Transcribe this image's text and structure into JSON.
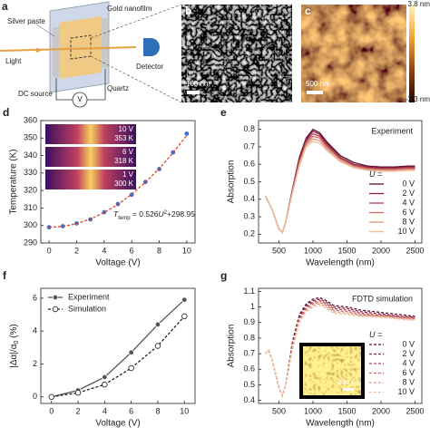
{
  "panels": {
    "a": {
      "label": "a",
      "texts": [
        "Silver paste",
        "Gold nanofilm",
        "Light",
        "Detector",
        "DC source",
        "Quartz",
        "V"
      ]
    },
    "b": {
      "label": "b",
      "scale": "100 nm"
    },
    "c": {
      "label": "c",
      "scale": "500 nm",
      "colorbar_max": "3.8 nm",
      "colorbar_min": "-3.3 nm"
    },
    "d": {
      "label": "d"
    },
    "e": {
      "label": "e"
    },
    "f": {
      "label": "f"
    },
    "g": {
      "label": "g"
    }
  },
  "chart_data": [
    {
      "type": "scatter",
      "xlabel": "Voltage (V)",
      "ylabel": "Temperature (K)",
      "x": [
        0,
        1,
        2,
        3,
        4,
        5,
        6,
        7,
        8,
        9,
        10
      ],
      "series": [
        {
          "color": "#3f6fc4",
          "marker": "filled",
          "line": "none",
          "values": [
            299,
            299.6,
            301.2,
            303.5,
            307.6,
            312.3,
            317.6,
            324.9,
            332.3,
            341.8,
            352.5
          ]
        },
        {
          "color": "#e0402a",
          "marker": "none",
          "line": "dashed",
          "values": [
            298.95,
            299.48,
            301.05,
            303.68,
            307.37,
            312.1,
            317.89,
            324.72,
            332.61,
            341.56,
            351.55
          ]
        }
      ],
      "xlim": [
        -0.6,
        10.6
      ],
      "xticks": [
        0,
        2,
        4,
        6,
        8,
        10
      ],
      "ylim": [
        290,
        360
      ],
      "yticks": [
        290,
        300,
        310,
        320,
        330,
        340,
        350,
        360
      ],
      "annotation_parts": [
        "T",
        "temp",
        " = 0.526",
        "U",
        "2",
        "+298.95"
      ],
      "insets": [
        {
          "voltage": "10 V",
          "temperature": "353 K"
        },
        {
          "voltage": "6 V",
          "temperature": "318 K"
        },
        {
          "voltage": "1 V",
          "temperature": "300 K"
        }
      ]
    },
    {
      "type": "line",
      "xlabel": "Wavelength (nm)",
      "ylabel": "Absorption",
      "annotation": "Experiment",
      "legend_title": "U =",
      "legend": "lower right",
      "x": [
        300,
        400,
        500,
        550,
        600,
        700,
        800,
        900,
        1000,
        1100,
        1200,
        1400,
        1600,
        1800,
        2000,
        2200,
        2400,
        2500
      ],
      "series": [
        {
          "name": "0 V",
          "color": "#5a1030",
          "values": [
            0.42,
            0.34,
            0.23,
            0.21,
            0.27,
            0.46,
            0.64,
            0.75,
            0.8,
            0.78,
            0.73,
            0.65,
            0.61,
            0.59,
            0.585,
            0.585,
            0.59,
            0.59
          ]
        },
        {
          "name": "2 V",
          "color": "#8a2040",
          "values": [
            0.42,
            0.34,
            0.23,
            0.21,
            0.27,
            0.46,
            0.63,
            0.74,
            0.79,
            0.77,
            0.72,
            0.64,
            0.6,
            0.585,
            0.58,
            0.58,
            0.585,
            0.585
          ]
        },
        {
          "name": "4 V",
          "color": "#b54050",
          "values": [
            0.42,
            0.34,
            0.23,
            0.21,
            0.27,
            0.45,
            0.62,
            0.73,
            0.775,
            0.76,
            0.71,
            0.635,
            0.595,
            0.58,
            0.575,
            0.575,
            0.58,
            0.58
          ]
        },
        {
          "name": "6 V",
          "color": "#d06a60",
          "values": [
            0.42,
            0.34,
            0.23,
            0.21,
            0.27,
            0.45,
            0.61,
            0.72,
            0.76,
            0.75,
            0.7,
            0.63,
            0.59,
            0.575,
            0.57,
            0.57,
            0.575,
            0.575
          ]
        },
        {
          "name": "8 V",
          "color": "#e09a80",
          "values": [
            0.42,
            0.34,
            0.23,
            0.21,
            0.27,
            0.44,
            0.6,
            0.71,
            0.745,
            0.735,
            0.69,
            0.62,
            0.585,
            0.57,
            0.565,
            0.565,
            0.57,
            0.57
          ]
        },
        {
          "name": "10 V",
          "color": "#edc0a0",
          "values": [
            0.42,
            0.34,
            0.23,
            0.21,
            0.27,
            0.44,
            0.59,
            0.7,
            0.73,
            0.72,
            0.68,
            0.615,
            0.58,
            0.565,
            0.56,
            0.56,
            0.565,
            0.565
          ]
        }
      ],
      "xlim": [
        200,
        2600
      ],
      "xticks": [
        500,
        1000,
        1500,
        2000,
        2500
      ],
      "ylim": [
        0.15,
        0.85
      ],
      "yticks": [
        0.2,
        0.3,
        0.4,
        0.5,
        0.6,
        0.7,
        0.8
      ]
    },
    {
      "type": "line",
      "xlabel": "Voltage (V)",
      "ylabel_parts": [
        "|Δα|/α",
        "0",
        " (%)"
      ],
      "legend": "upper left",
      "x": [
        0,
        2,
        4,
        6,
        8,
        10
      ],
      "series": [
        {
          "name": "Experiment",
          "color": "#555555",
          "marker": "filled",
          "line": "solid",
          "values": [
            0,
            0.4,
            1.2,
            2.7,
            4.4,
            5.9
          ]
        },
        {
          "name": "Simulation",
          "color": "#222222",
          "marker": "open",
          "line": "dashed",
          "values": [
            0,
            0.25,
            0.75,
            1.75,
            3.1,
            4.9
          ]
        }
      ],
      "xlim": [
        -0.8,
        10.8
      ],
      "xticks": [
        0,
        2,
        4,
        6,
        8,
        10
      ],
      "ylim": [
        -0.4,
        6.6
      ],
      "yticks": [
        0,
        2,
        4,
        6
      ]
    },
    {
      "type": "line",
      "xlabel": "Wavelength (nm)",
      "ylabel": "Absorption",
      "annotation": "FDTD simulation",
      "legend_title": "U =",
      "legend": "lower right",
      "inset_scale": "200 nm",
      "x": [
        300,
        350,
        400,
        500,
        550,
        600,
        700,
        800,
        900,
        1000,
        1100,
        1200,
        1300,
        1500,
        1700,
        1900,
        2100,
        2300,
        2500
      ],
      "series": [
        {
          "name": "0 V",
          "color": "#5a1030",
          "line": "dashed",
          "values": [
            0.7,
            0.72,
            0.66,
            0.48,
            0.43,
            0.5,
            0.78,
            0.95,
            1.02,
            1.05,
            1.06,
            1.04,
            1.01,
            1.0,
            0.98,
            0.97,
            0.96,
            0.95,
            0.94
          ]
        },
        {
          "name": "2 V",
          "color": "#8a2040",
          "line": "dashed",
          "values": [
            0.7,
            0.72,
            0.66,
            0.48,
            0.43,
            0.5,
            0.77,
            0.94,
            1.01,
            1.04,
            1.05,
            1.03,
            1.0,
            0.99,
            0.97,
            0.96,
            0.95,
            0.94,
            0.935
          ]
        },
        {
          "name": "4 V",
          "color": "#b54050",
          "line": "dashed",
          "values": [
            0.7,
            0.72,
            0.66,
            0.48,
            0.43,
            0.5,
            0.76,
            0.93,
            1.0,
            1.03,
            1.04,
            1.02,
            0.99,
            0.98,
            0.96,
            0.95,
            0.945,
            0.935,
            0.93
          ]
        },
        {
          "name": "6 V",
          "color": "#d06a60",
          "line": "dashed",
          "values": [
            0.7,
            0.72,
            0.66,
            0.48,
            0.43,
            0.5,
            0.75,
            0.92,
            0.99,
            1.02,
            1.03,
            1.01,
            0.98,
            0.97,
            0.95,
            0.945,
            0.94,
            0.93,
            0.925
          ]
        },
        {
          "name": "8 V",
          "color": "#e09a80",
          "line": "dashed",
          "values": [
            0.7,
            0.72,
            0.66,
            0.48,
            0.43,
            0.5,
            0.74,
            0.91,
            0.98,
            1.01,
            1.02,
            1.0,
            0.97,
            0.96,
            0.945,
            0.94,
            0.935,
            0.925,
            0.92
          ]
        },
        {
          "name": "10 V",
          "color": "#edc0a0",
          "line": "dashed",
          "values": [
            0.7,
            0.72,
            0.66,
            0.48,
            0.43,
            0.5,
            0.73,
            0.9,
            0.97,
            1.0,
            1.01,
            0.99,
            0.96,
            0.95,
            0.94,
            0.935,
            0.93,
            0.92,
            0.915
          ]
        }
      ],
      "xlim": [
        200,
        2600
      ],
      "xticks": [
        500,
        1000,
        1500,
        2000,
        2500
      ],
      "ylim": [
        0.38,
        1.12
      ],
      "yticks": [
        0.4,
        0.5,
        0.6,
        0.7,
        0.8,
        0.9,
        1.0,
        1.1
      ]
    }
  ]
}
